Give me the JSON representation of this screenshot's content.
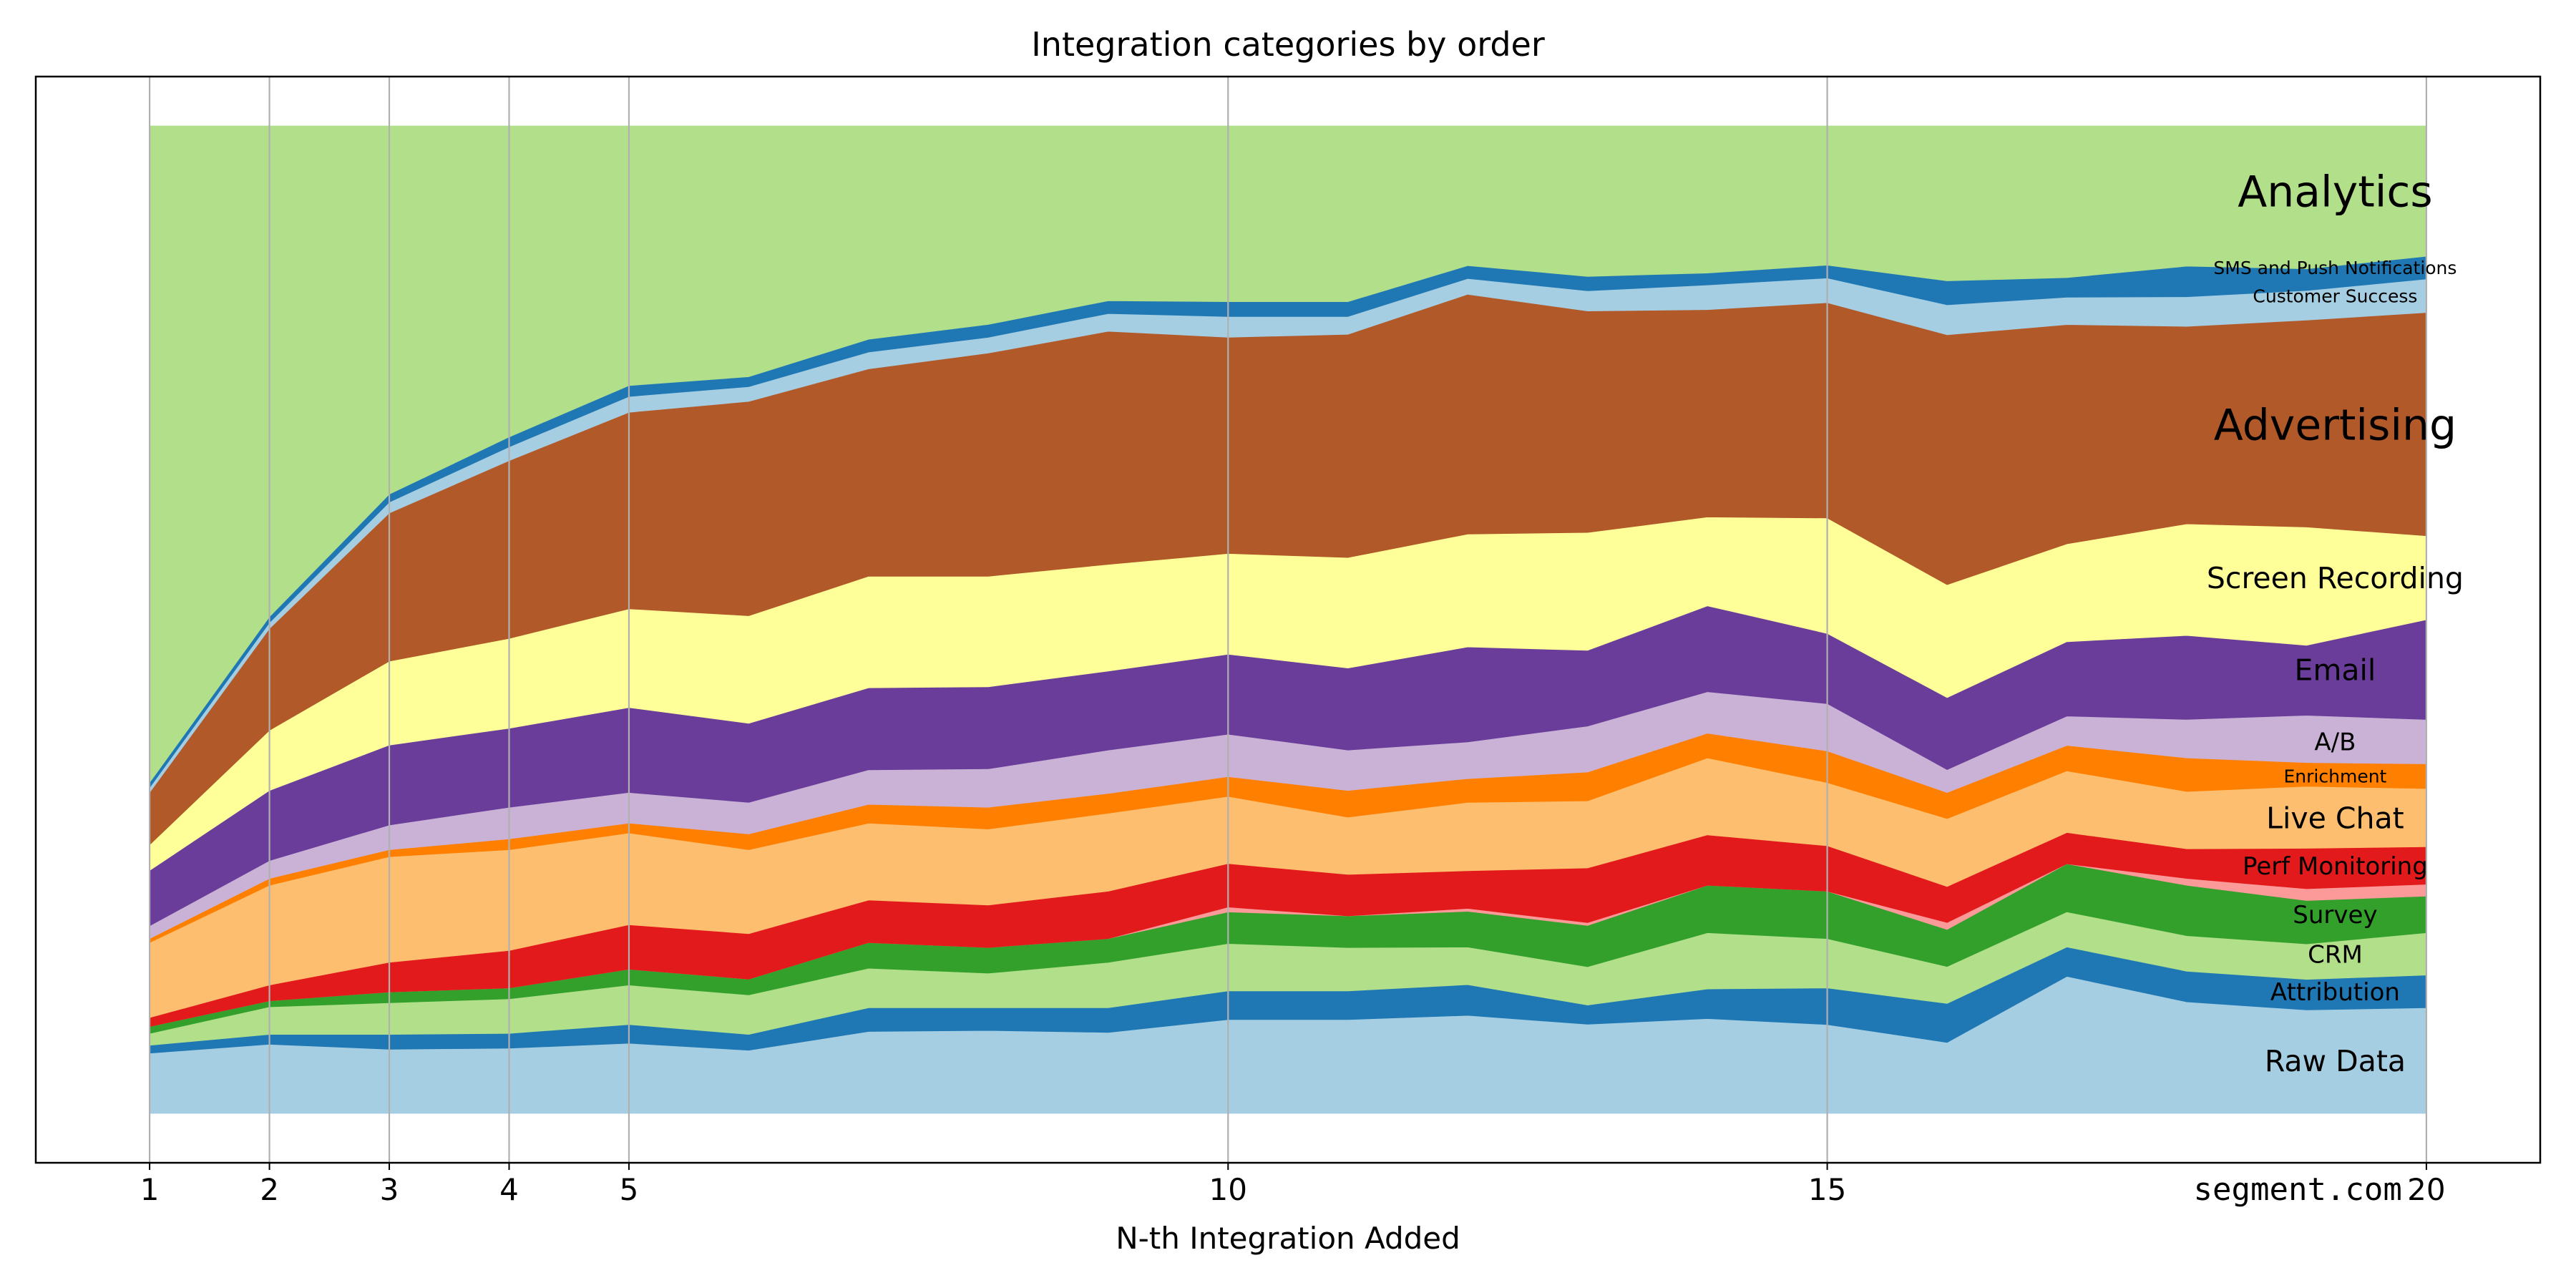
{
  "chart_data": {
    "type": "area",
    "stacked": true,
    "title": "Integration categories by order",
    "xlabel": "N-th Integration Added",
    "ylabel": "",
    "watermark": "segment.com",
    "x": [
      1,
      2,
      3,
      4,
      5,
      6,
      7,
      8,
      9,
      10,
      11,
      12,
      13,
      14,
      15,
      16,
      17,
      18,
      19,
      20
    ],
    "xticks": [
      1,
      2,
      3,
      4,
      5,
      10,
      15,
      20
    ],
    "xlim": [
      0.05,
      20.95
    ],
    "ylim": [
      -0.05,
      1.05
    ],
    "vgrid": [
      1,
      2,
      3,
      4,
      5,
      10,
      15,
      20
    ],
    "series": [
      {
        "name": "Raw Data",
        "color": "#a6cee3",
        "label_size": "large",
        "values": [
          0.061,
          0.07,
          0.065,
          0.066,
          0.071,
          0.064,
          0.083,
          0.084,
          0.082,
          0.095,
          0.095,
          0.099,
          0.093,
          0.096,
          0.09,
          0.071,
          0.14,
          0.113,
          0.105,
          0.107
        ]
      },
      {
        "name": "Attribution",
        "color": "#1f78b4",
        "label_size": "medium",
        "values": [
          0.008,
          0.01,
          0.015,
          0.015,
          0.019,
          0.016,
          0.024,
          0.023,
          0.025,
          0.029,
          0.029,
          0.031,
          0.02,
          0.03,
          0.037,
          0.039,
          0.03,
          0.031,
          0.031,
          0.033
        ]
      },
      {
        "name": "CRM",
        "color": "#b2df8a",
        "label_size": "medium",
        "values": [
          0.012,
          0.028,
          0.032,
          0.035,
          0.04,
          0.04,
          0.04,
          0.035,
          0.046,
          0.048,
          0.044,
          0.038,
          0.04,
          0.057,
          0.05,
          0.037,
          0.036,
          0.036,
          0.036,
          0.043
        ]
      },
      {
        "name": "Survey",
        "color": "#33a02c",
        "label_size": "medium",
        "values": [
          0.007,
          0.006,
          0.011,
          0.011,
          0.016,
          0.016,
          0.026,
          0.026,
          0.024,
          0.032,
          0.032,
          0.036,
          0.043,
          0.048,
          0.048,
          0.037,
          0.049,
          0.051,
          0.044,
          0.037
        ]
      },
      {
        "name": "",
        "color": "#fb9a99",
        "label_size": "small",
        "values": [
          0.0,
          0.0,
          0.0,
          0.0,
          0.0,
          0.0,
          0.0,
          0.0,
          0.0,
          0.005,
          0.0,
          0.003,
          0.003,
          0.0,
          0.0,
          0.007,
          0.0,
          0.007,
          0.012,
          0.012
        ]
      },
      {
        "name": "Perf Monitoring",
        "color": "#e31a1c",
        "label_size": "medium",
        "values": [
          0.009,
          0.016,
          0.03,
          0.038,
          0.045,
          0.046,
          0.043,
          0.043,
          0.048,
          0.044,
          0.042,
          0.038,
          0.057,
          0.051,
          0.046,
          0.036,
          0.032,
          0.03,
          0.041,
          0.038
        ]
      },
      {
        "name": "Live Chat",
        "color": "#fdbf6f",
        "label_size": "large",
        "values": [
          0.076,
          0.101,
          0.107,
          0.102,
          0.093,
          0.085,
          0.078,
          0.077,
          0.079,
          0.068,
          0.058,
          0.069,
          0.07,
          0.078,
          0.064,
          0.068,
          0.063,
          0.058,
          0.063,
          0.059
        ]
      },
      {
        "name": "Enrichment",
        "color": "#ff7f00",
        "label_size": "small",
        "values": [
          0.004,
          0.007,
          0.007,
          0.011,
          0.01,
          0.016,
          0.019,
          0.022,
          0.02,
          0.02,
          0.027,
          0.024,
          0.03,
          0.025,
          0.032,
          0.026,
          0.026,
          0.034,
          0.024,
          0.025
        ]
      },
      {
        "name": "A/B",
        "color": "#cab2d6",
        "label_size": "medium",
        "values": [
          0.013,
          0.018,
          0.025,
          0.032,
          0.031,
          0.032,
          0.035,
          0.039,
          0.044,
          0.043,
          0.041,
          0.037,
          0.048,
          0.042,
          0.048,
          0.023,
          0.03,
          0.039,
          0.048,
          0.045
        ]
      },
      {
        "name": "Email",
        "color": "#6a3d9a",
        "label_size": "large",
        "values": [
          0.056,
          0.071,
          0.081,
          0.08,
          0.086,
          0.08,
          0.083,
          0.083,
          0.08,
          0.081,
          0.083,
          0.096,
          0.079,
          0.087,
          0.071,
          0.072,
          0.076,
          0.085,
          0.071,
          0.101
        ]
      },
      {
        "name": "Screen Recording",
        "color": "#ffff99",
        "label_size": "large",
        "values": [
          0.026,
          0.061,
          0.085,
          0.091,
          0.1,
          0.109,
          0.113,
          0.112,
          0.108,
          0.102,
          0.112,
          0.114,
          0.123,
          0.09,
          0.117,
          0.113,
          0.1,
          0.113,
          0.12,
          0.085
        ]
      },
      {
        "name": "Advertising",
        "color": "#b15928",
        "label_size": "xlarge",
        "values": [
          0.053,
          0.103,
          0.15,
          0.18,
          0.199,
          0.217,
          0.21,
          0.226,
          0.236,
          0.219,
          0.226,
          0.242,
          0.231,
          0.21,
          0.218,
          0.25,
          0.224,
          0.2,
          0.21,
          0.226
        ]
      },
      {
        "name": "Customer Success",
        "color": "#a6cee3",
        "label_size": "small",
        "values": [
          0.005,
          0.006,
          0.011,
          0.014,
          0.016,
          0.015,
          0.017,
          0.016,
          0.018,
          0.021,
          0.018,
          0.016,
          0.021,
          0.025,
          0.025,
          0.03,
          0.028,
          0.03,
          0.03,
          0.034
        ]
      },
      {
        "name": "SMS and Push Notifications",
        "color": "#1f78b4",
        "label_size": "small",
        "values": [
          0.005,
          0.006,
          0.008,
          0.01,
          0.011,
          0.01,
          0.013,
          0.013,
          0.013,
          0.015,
          0.015,
          0.013,
          0.015,
          0.012,
          0.013,
          0.024,
          0.02,
          0.031,
          0.022,
          0.023
        ]
      },
      {
        "name": "Analytics",
        "color": "#b2df8a",
        "label_size": "xlarge",
        "values": [
          0.665,
          0.497,
          0.373,
          0.315,
          0.263,
          0.254,
          0.216,
          0.201,
          0.177,
          0.178,
          0.178,
          0.141,
          0.157,
          0.149,
          0.141,
          0.155,
          0.155,
          0.142,
          0.145,
          0.132
        ]
      }
    ]
  }
}
